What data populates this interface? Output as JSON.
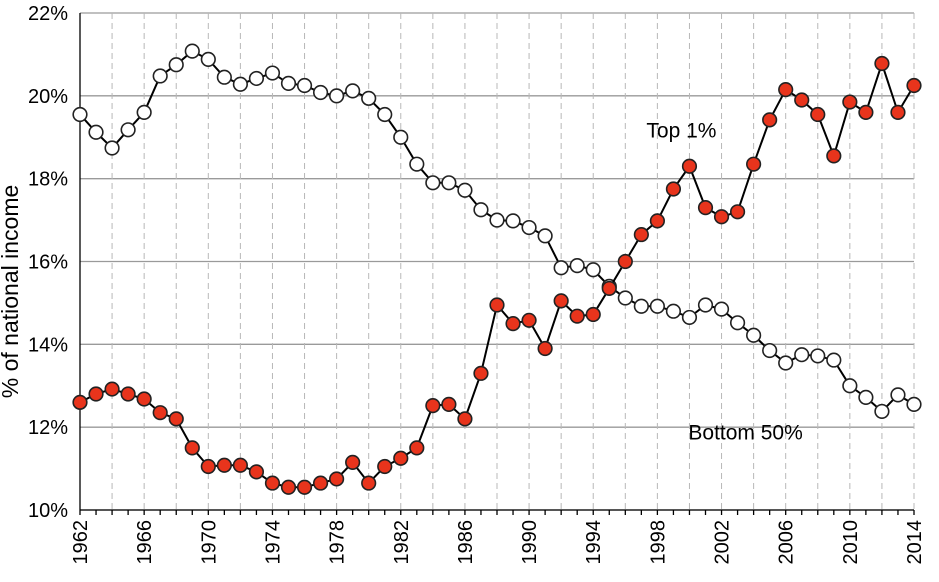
{
  "chart_data": {
    "type": "line",
    "title": "",
    "xlabel": "",
    "ylabel": "% of national income",
    "xlim": [
      1962,
      2014
    ],
    "ylim": [
      10,
      22
    ],
    "y_ticks": [
      10,
      12,
      14,
      16,
      18,
      20,
      22
    ],
    "y_tick_labels": [
      "10%",
      "12%",
      "14%",
      "16%",
      "18%",
      "20%",
      "22%"
    ],
    "x_ticks": [
      1962,
      1966,
      1970,
      1974,
      1978,
      1982,
      1986,
      1990,
      1994,
      1998,
      2002,
      2006,
      2010,
      2014
    ],
    "x_tick_labels": [
      "1962",
      "1966",
      "1970",
      "1974",
      "1978",
      "1982",
      "1986",
      "1990",
      "1994",
      "1998",
      "2002",
      "2006",
      "2010",
      "2014"
    ],
    "grid": "on",
    "legend": "none",
    "annotations": [
      {
        "text": "Top 1%",
        "x": 1999.5,
        "y": 19.0
      },
      {
        "text": "Bottom 50%",
        "x": 2003.5,
        "y": 11.7
      }
    ],
    "x": [
      1962,
      1963,
      1964,
      1965,
      1966,
      1967,
      1968,
      1969,
      1970,
      1971,
      1972,
      1973,
      1974,
      1975,
      1976,
      1977,
      1978,
      1979,
      1980,
      1981,
      1982,
      1983,
      1984,
      1985,
      1986,
      1987,
      1988,
      1989,
      1990,
      1991,
      1992,
      1993,
      1994,
      1995,
      1996,
      1997,
      1998,
      1999,
      2000,
      2001,
      2002,
      2003,
      2004,
      2005,
      2006,
      2007,
      2008,
      2009,
      2010,
      2011,
      2012,
      2013,
      2014
    ],
    "series": [
      {
        "key": "bottom50",
        "marker_fill": "#ffffff",
        "values": [
          19.55,
          19.12,
          18.74,
          19.18,
          19.6,
          20.48,
          20.75,
          21.08,
          20.88,
          20.45,
          20.28,
          20.42,
          20.55,
          20.3,
          20.25,
          20.08,
          20.0,
          20.12,
          19.94,
          19.55,
          19.0,
          18.35,
          17.9,
          17.9,
          17.72,
          17.25,
          17.0,
          16.98,
          16.82,
          16.62,
          15.85,
          15.9,
          15.8,
          15.4,
          15.12,
          14.92,
          14.92,
          14.8,
          14.65,
          14.95,
          14.85,
          14.52,
          14.22,
          13.85,
          13.55,
          13.75,
          13.72,
          13.62,
          13.0,
          12.72,
          12.38,
          12.78,
          12.55
        ]
      },
      {
        "key": "top1",
        "marker_fill": "#e8341c",
        "values": [
          12.6,
          12.8,
          12.92,
          12.8,
          12.68,
          12.35,
          12.2,
          11.5,
          11.05,
          11.08,
          11.08,
          10.92,
          10.65,
          10.55,
          10.55,
          10.65,
          10.75,
          11.15,
          10.65,
          11.05,
          11.25,
          11.5,
          12.52,
          12.55,
          12.2,
          13.3,
          14.95,
          14.5,
          14.58,
          13.9,
          15.05,
          14.68,
          14.72,
          15.35,
          16.0,
          16.65,
          16.98,
          17.75,
          18.3,
          17.3,
          17.08,
          17.2,
          18.35,
          19.42,
          20.15,
          19.9,
          19.55,
          18.55,
          19.85,
          19.6,
          20.78,
          19.6,
          20.25
        ]
      }
    ]
  }
}
